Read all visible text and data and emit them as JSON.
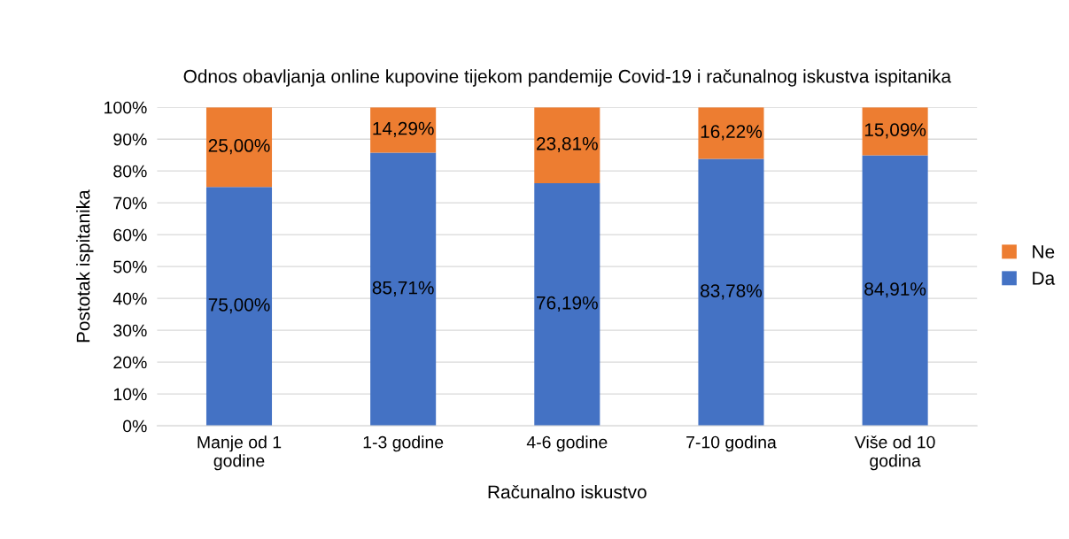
{
  "chart_data": {
    "type": "bar",
    "stacked": true,
    "title": "Odnos obavljanja online kupovine tijekom pandemije Covid-19 i računalnog iskustva ispitanika",
    "xlabel": "Računalno iskustvo",
    "ylabel": "Postotak ispitanika",
    "categories": [
      "Manje od 1\ngodine",
      "1-3 godine",
      "4-6 godine",
      "7-10 godina",
      "Više od 10\ngodina"
    ],
    "series": [
      {
        "name": "Da",
        "color": "#4472c4",
        "values": [
          75.0,
          85.71,
          76.19,
          83.78,
          84.91
        ],
        "value_labels": [
          "75,00%",
          "85,71%",
          "76,19%",
          "83,78%",
          "84,91%"
        ]
      },
      {
        "name": "Ne",
        "color": "#ed7d31",
        "values": [
          25.0,
          14.29,
          23.81,
          16.22,
          15.09
        ],
        "value_labels": [
          "25,00%",
          "14,29%",
          "23,81%",
          "16,22%",
          "15,09%"
        ]
      }
    ],
    "ylim": [
      0,
      100
    ],
    "yticks": [
      {
        "value": 0,
        "label": "0%"
      },
      {
        "value": 10,
        "label": "10%"
      },
      {
        "value": 20,
        "label": "20%"
      },
      {
        "value": 30,
        "label": "30%"
      },
      {
        "value": 40,
        "label": "40%"
      },
      {
        "value": 50,
        "label": "50%"
      },
      {
        "value": 60,
        "label": "60%"
      },
      {
        "value": 70,
        "label": "70%"
      },
      {
        "value": 80,
        "label": "80%"
      },
      {
        "value": 90,
        "label": "90%"
      },
      {
        "value": 100,
        "label": "100%"
      }
    ],
    "grid": "y",
    "legend": "right"
  }
}
